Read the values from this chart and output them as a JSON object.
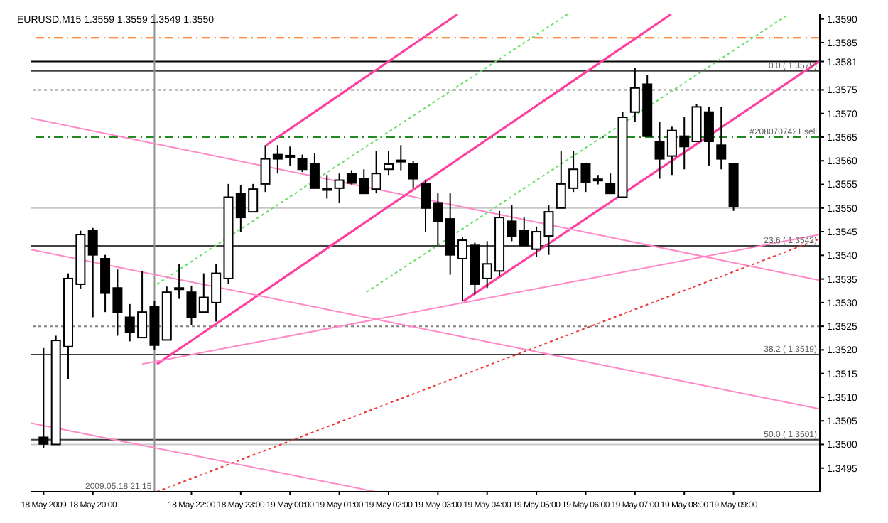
{
  "chart_data": {
    "type": "candlestick",
    "title": "EURUSD,M15  1.3559 1.3559 1.3549 1.3550",
    "x": [
      "2009-05-18T19:00",
      "2009-05-18T19:15",
      "2009-05-18T19:30",
      "2009-05-18T19:45",
      "2009-05-18T20:00",
      "2009-05-18T20:15",
      "2009-05-18T20:30",
      "2009-05-18T20:45",
      "2009-05-18T21:00",
      "2009-05-18T21:15",
      "2009-05-18T21:30",
      "2009-05-18T21:45",
      "2009-05-18T22:00",
      "2009-05-18T22:15",
      "2009-05-18T22:30",
      "2009-05-18T22:45",
      "2009-05-18T23:00",
      "2009-05-18T23:15",
      "2009-05-18T23:30",
      "2009-05-18T23:45",
      "2009-05-19T00:00",
      "2009-05-19T00:15",
      "2009-05-19T00:30",
      "2009-05-19T00:45",
      "2009-05-19T01:00",
      "2009-05-19T01:15",
      "2009-05-19T01:30",
      "2009-05-19T01:45",
      "2009-05-19T02:00",
      "2009-05-19T02:15",
      "2009-05-19T02:30",
      "2009-05-19T02:45",
      "2009-05-19T03:00",
      "2009-05-19T03:15",
      "2009-05-19T03:30",
      "2009-05-19T03:45",
      "2009-05-19T04:00",
      "2009-05-19T04:15",
      "2009-05-19T04:30",
      "2009-05-19T04:45",
      "2009-05-19T05:00",
      "2009-05-19T05:15",
      "2009-05-19T05:30",
      "2009-05-19T05:45",
      "2009-05-19T06:00",
      "2009-05-19T06:15",
      "2009-05-19T06:30",
      "2009-05-19T06:45",
      "2009-05-19T07:00",
      "2009-05-19T07:15",
      "2009-05-19T07:30",
      "2009-05-19T07:45",
      "2009-05-19T08:00",
      "2009-05-19T08:15",
      "2009-05-19T08:30",
      "2009-05-19T08:45",
      "2009-05-19T09:00"
    ],
    "ohlc": [
      [
        1.35015,
        1.35204,
        1.34992,
        1.35001
      ],
      [
        1.35,
        1.3523,
        1.35,
        1.3522
      ],
      [
        1.35207,
        1.35362,
        1.35139,
        1.35351
      ],
      [
        1.35339,
        1.35452,
        1.3533,
        1.35444
      ],
      [
        1.35452,
        1.35458,
        1.35269,
        1.35401
      ],
      [
        1.35393,
        1.35401,
        1.3528,
        1.3532
      ],
      [
        1.35331,
        1.3537,
        1.3523,
        1.3528
      ],
      [
        1.35269,
        1.35297,
        1.35218,
        1.35238
      ],
      [
        1.35226,
        1.35367,
        1.35226,
        1.3528
      ],
      [
        1.35291,
        1.35303,
        1.352,
        1.3521
      ],
      [
        1.35221,
        1.35334,
        1.35221,
        1.35322
      ],
      [
        1.3533,
        1.35382,
        1.35308,
        1.35331
      ],
      [
        1.35322,
        1.35336,
        1.35252,
        1.35269
      ],
      [
        1.3528,
        1.35362,
        1.3528,
        1.35311
      ],
      [
        1.353,
        1.35382,
        1.3526,
        1.35362
      ],
      [
        1.35351,
        1.35551,
        1.3534,
        1.35523
      ],
      [
        1.35531,
        1.35548,
        1.35449,
        1.3548
      ],
      [
        1.35492,
        1.35551,
        1.35492,
        1.3554
      ],
      [
        1.35551,
        1.35633,
        1.35534,
        1.35604
      ],
      [
        1.35613,
        1.35633,
        1.35573,
        1.35604
      ],
      [
        1.3561,
        1.3563,
        1.3559,
        1.35611
      ],
      [
        1.35604,
        1.35613,
        1.35576,
        1.35582
      ],
      [
        1.35593,
        1.35616,
        1.35542,
        1.35542
      ],
      [
        1.3554,
        1.3557,
        1.3552,
        1.35541
      ],
      [
        1.35542,
        1.35573,
        1.35511,
        1.35559
      ],
      [
        1.35573,
        1.3558,
        1.3555,
        1.35553
      ],
      [
        1.35562,
        1.35582,
        1.3553,
        1.35531
      ],
      [
        1.3554,
        1.35621,
        1.35531,
        1.35573
      ],
      [
        1.35582,
        1.35621,
        1.3557,
        1.35593
      ],
      [
        1.356,
        1.35633,
        1.3558,
        1.35601
      ],
      [
        1.35593,
        1.356,
        1.35542,
        1.35562
      ],
      [
        1.35551,
        1.3556,
        1.35449,
        1.355
      ],
      [
        1.35511,
        1.35531,
        1.35421,
        1.35472
      ],
      [
        1.35477,
        1.35531,
        1.35359,
        1.35401
      ],
      [
        1.35393,
        1.35438,
        1.35303,
        1.35432
      ],
      [
        1.35421,
        1.35427,
        1.35317,
        1.35339
      ],
      [
        1.35351,
        1.3543,
        1.35331,
        1.35382
      ],
      [
        1.35367,
        1.35494,
        1.35356,
        1.3548
      ],
      [
        1.35472,
        1.35506,
        1.3543,
        1.35441
      ],
      [
        1.35452,
        1.3548,
        1.3542,
        1.35421
      ],
      [
        1.35413,
        1.35461,
        1.35396,
        1.3545
      ],
      [
        1.35441,
        1.35506,
        1.35401,
        1.35492
      ],
      [
        1.355,
        1.35621,
        1.355,
        1.35551
      ],
      [
        1.35542,
        1.35621,
        1.35534,
        1.35582
      ],
      [
        1.35593,
        1.35596,
        1.35534,
        1.35554
      ],
      [
        1.3556,
        1.3557,
        1.3555,
        1.35561
      ],
      [
        1.35551,
        1.35573,
        1.3553,
        1.35531
      ],
      [
        1.35523,
        1.35703,
        1.35523,
        1.35692
      ],
      [
        1.35703,
        1.35796,
        1.35683,
        1.35754
      ],
      [
        1.35762,
        1.35782,
        1.35652,
        1.35652
      ],
      [
        1.35641,
        1.35683,
        1.35562,
        1.35604
      ],
      [
        1.3561,
        1.35672,
        1.3557,
        1.35664
      ],
      [
        1.35652,
        1.35692,
        1.35582,
        1.3563
      ],
      [
        1.35641,
        1.3572,
        1.3564,
        1.35714
      ],
      [
        1.35703,
        1.35714,
        1.3559,
        1.35641
      ],
      [
        1.35633,
        1.35714,
        1.35582,
        1.35604
      ],
      [
        1.35593,
        1.35593,
        1.35494,
        1.35503
      ]
    ],
    "color": "#000000",
    "series": [
      {
        "type": "line",
        "color": "#ff3fa0",
        "line_style": "solid",
        "x": [
          "2009-05-18T23:31",
          "2009-05-19T03:24"
        ],
        "values": [
          1.35633,
          1.3591
        ]
      },
      {
        "type": "line",
        "color": "#ff3fa0",
        "line_style": "solid",
        "x": [
          "2009-05-18T21:18",
          "2009-05-19T07:44"
        ],
        "values": [
          1.3517,
          1.3591
        ]
      },
      {
        "type": "line",
        "color": "#ff3fa0",
        "line_style": "solid",
        "x": [
          "2009-05-19T03:31",
          "2009-05-19T10:45"
        ],
        "values": [
          1.35303,
          1.35811
        ]
      },
      {
        "type": "line",
        "color": "#66dd66",
        "line_style": "dotted",
        "x": [
          "2009-05-18T21:18",
          "2009-05-19T05:38"
        ],
        "values": [
          1.35339,
          1.3591
        ]
      },
      {
        "type": "line",
        "color": "#66dd66",
        "line_style": "dotted",
        "x": [
          "2009-05-19T01:33",
          "2009-05-19T10:07"
        ],
        "values": [
          1.35322,
          1.3591
        ]
      },
      {
        "type": "line",
        "color": "#ff88c8",
        "line_style": "solid",
        "x": [
          "2009-05-18T18:45",
          "2009-05-19T10:45"
        ],
        "values": [
          1.3569,
          1.35347
        ]
      },
      {
        "type": "line",
        "color": "#ff88c8",
        "line_style": "solid",
        "x": [
          "2009-05-18T18:45",
          "2009-05-19T10:45"
        ],
        "values": [
          1.35412,
          1.35075
        ]
      },
      {
        "type": "line",
        "color": "#ff88c8",
        "line_style": "solid",
        "x": [
          "2009-05-18T18:45",
          "2009-05-19T01:44"
        ],
        "values": [
          1.35045,
          1.349
        ]
      },
      {
        "type": "line",
        "color": "#ff88c8",
        "line_style": "solid",
        "x": [
          "2009-05-18T21:00",
          "2009-05-19T10:45"
        ],
        "values": [
          1.3517,
          1.35444
        ]
      },
      {
        "type": "line",
        "color": "#ee3333",
        "line_style": "dotted",
        "x": [
          "2009-05-18T21:18",
          "2009-05-19T10:45"
        ],
        "values": [
          1.349,
          1.35435
        ]
      }
    ],
    "ref_lines": [
      {
        "axis": "y",
        "value": 1.3586,
        "color": "#ff6600",
        "line_style": "dashed"
      },
      {
        "axis": "y",
        "value": 1.3581,
        "color": "#000000",
        "line_style": "solid"
      },
      {
        "axis": "y",
        "value": 1.3579,
        "label": "0.0 ( 1.3579)",
        "color": "#404040",
        "line_style": "solid"
      },
      {
        "axis": "y",
        "value": 1.3575,
        "color": "#808080",
        "line_style": "dotted"
      },
      {
        "axis": "y",
        "value": 1.3565,
        "label": "#2080707421 sell",
        "color": "#228822",
        "line_style": "dashed"
      },
      {
        "axis": "y",
        "value": 1.355,
        "color": "#c8c8c8",
        "line_style": "solid"
      },
      {
        "axis": "y",
        "value": 1.3542,
        "label": "23.6 ( 1.3542)",
        "color": "#404040",
        "line_style": "solid"
      },
      {
        "axis": "y",
        "value": 1.3525,
        "color": "#808080",
        "line_style": "dotted"
      },
      {
        "axis": "y",
        "value": 1.3519,
        "label": "38.2 ( 1.3519)",
        "color": "#404040",
        "line_style": "solid"
      },
      {
        "axis": "y",
        "value": 1.3501,
        "label": "50.0 ( 1.3501)",
        "color": "#404040",
        "line_style": "solid"
      },
      {
        "axis": "y",
        "value": 1.35,
        "color": "#c8c8c8",
        "line_style": "solid"
      },
      {
        "axis": "x",
        "value": "2009-05-18T21:15",
        "label": "2009.05.18 21:15",
        "color": "#909090",
        "line_style": "solid"
      }
    ],
    "xlim": [
      "2009-05-18T18:45",
      "2009-05-19T10:45"
    ],
    "xticks": [
      {
        "value": "2009-05-18T19:00",
        "label": "18 May 2009"
      },
      {
        "value": "2009-05-18T20:00",
        "label": "18 May 20:00"
      },
      {
        "value": "2009-05-18T22:00",
        "label": "18 May 22:00"
      },
      {
        "value": "2009-05-18T23:00",
        "label": "18 May 23:00"
      },
      {
        "value": "2009-05-19T00:00",
        "label": "19 May 00:00"
      },
      {
        "value": "2009-05-19T01:00",
        "label": "19 May 01:00"
      },
      {
        "value": "2009-05-19T02:00",
        "label": "19 May 02:00"
      },
      {
        "value": "2009-05-19T03:00",
        "label": "19 May 03:00"
      },
      {
        "value": "2009-05-19T04:00",
        "label": "19 May 04:00"
      },
      {
        "value": "2009-05-19T05:00",
        "label": "19 May 05:00"
      },
      {
        "value": "2009-05-19T06:00",
        "label": "19 May 06:00"
      },
      {
        "value": "2009-05-19T07:00",
        "label": "19 May 07:00"
      },
      {
        "value": "2009-05-19T08:00",
        "label": "19 May 08:00"
      },
      {
        "value": "2009-05-19T09:00",
        "label": "19 May 09:00"
      }
    ],
    "ylim": [
      1.349,
      1.3591
    ],
    "yticks": [
      {
        "value": 1.3495,
        "label": "1.3495"
      },
      {
        "value": 1.35,
        "label": "1.3500"
      },
      {
        "value": 1.3505,
        "label": "1.3505"
      },
      {
        "value": 1.351,
        "label": "1.3510"
      },
      {
        "value": 1.3515,
        "label": "1.3515"
      },
      {
        "value": 1.352,
        "label": "1.3520"
      },
      {
        "value": 1.3525,
        "label": "1.3525"
      },
      {
        "value": 1.353,
        "label": "1.3530"
      },
      {
        "value": 1.3535,
        "label": "1.3535"
      },
      {
        "value": 1.354,
        "label": "1.3540"
      },
      {
        "value": 1.3545,
        "label": "1.3545"
      },
      {
        "value": 1.355,
        "label": "1.3550"
      },
      {
        "value": 1.3555,
        "label": "1.3555"
      },
      {
        "value": 1.356,
        "label": "1.3560"
      },
      {
        "value": 1.3565,
        "label": "1.3565"
      },
      {
        "value": 1.357,
        "label": "1.3570"
      },
      {
        "value": 1.3575,
        "label": "1.3575"
      },
      {
        "value": 1.3581,
        "label": "1.3581"
      },
      {
        "value": 1.3585,
        "label": "1.3585"
      },
      {
        "value": 1.359,
        "label": "1.3590"
      }
    ]
  }
}
